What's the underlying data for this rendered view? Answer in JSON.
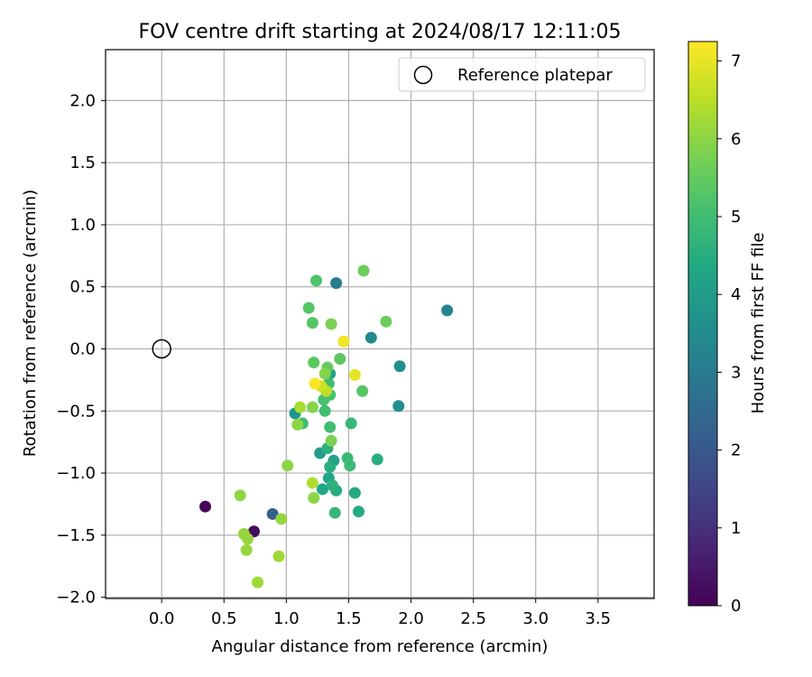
{
  "chart_data": {
    "type": "scatter",
    "title": "FOV centre drift starting at 2024/08/17 12:11:05",
    "xlabel": "Angular distance from reference (arcmin)",
    "ylabel": "Rotation from reference (arcmin)",
    "xlim": [
      -0.45,
      3.95
    ],
    "ylim": [
      -2.01,
      2.41
    ],
    "xticks": [
      "0.0",
      "0.5",
      "1.0",
      "1.5",
      "2.0",
      "2.5",
      "3.0",
      "3.5"
    ],
    "yticks": [
      "−2.0",
      "−1.5",
      "−1.0",
      "−0.5",
      "0.0",
      "0.5",
      "1.0",
      "1.5",
      "2.0"
    ],
    "grid": true,
    "legend": {
      "position": "top-right",
      "entries": [
        "Reference platepar"
      ]
    },
    "reference_point": {
      "x": 0.0,
      "y": 0.0,
      "marker": "hollow-circle"
    },
    "colorbar": {
      "label": "Hours from first FF file",
      "colormap": "viridis",
      "range": [
        0,
        7.25
      ],
      "ticks": [
        "0",
        "1",
        "2",
        "3",
        "4",
        "5",
        "6",
        "7"
      ]
    },
    "points": [
      {
        "x": 0.35,
        "y": -1.27,
        "c": 0.1
      },
      {
        "x": 0.74,
        "y": -1.47,
        "c": 0.2
      },
      {
        "x": 0.89,
        "y": -1.33,
        "c": 2.2
      },
      {
        "x": 1.4,
        "y": 0.53,
        "c": 3.0
      },
      {
        "x": 2.29,
        "y": 0.31,
        "c": 3.3
      },
      {
        "x": 1.68,
        "y": 0.09,
        "c": 3.4
      },
      {
        "x": 1.91,
        "y": -0.14,
        "c": 3.6
      },
      {
        "x": 1.9,
        "y": -0.46,
        "c": 3.6
      },
      {
        "x": 1.07,
        "y": -0.52,
        "c": 3.8
      },
      {
        "x": 1.27,
        "y": -0.84,
        "c": 4.0
      },
      {
        "x": 1.35,
        "y": -0.2,
        "c": 4.2
      },
      {
        "x": 1.38,
        "y": -0.9,
        "c": 4.2
      },
      {
        "x": 1.29,
        "y": -1.13,
        "c": 4.3
      },
      {
        "x": 1.34,
        "y": -1.04,
        "c": 4.3
      },
      {
        "x": 1.4,
        "y": -1.14,
        "c": 4.4
      },
      {
        "x": 1.55,
        "y": -1.16,
        "c": 4.4
      },
      {
        "x": 1.58,
        "y": -1.31,
        "c": 4.4
      },
      {
        "x": 1.73,
        "y": -0.89,
        "c": 4.5
      },
      {
        "x": 1.35,
        "y": -0.95,
        "c": 4.5
      },
      {
        "x": 1.33,
        "y": -0.8,
        "c": 4.6
      },
      {
        "x": 1.37,
        "y": -1.1,
        "c": 4.6
      },
      {
        "x": 1.39,
        "y": -1.32,
        "c": 4.8
      },
      {
        "x": 1.52,
        "y": -0.6,
        "c": 4.8
      },
      {
        "x": 1.49,
        "y": -0.88,
        "c": 4.9
      },
      {
        "x": 1.51,
        "y": -0.94,
        "c": 4.9
      },
      {
        "x": 1.13,
        "y": -0.6,
        "c": 5.0
      },
      {
        "x": 1.31,
        "y": -0.5,
        "c": 5.0
      },
      {
        "x": 1.34,
        "y": -0.28,
        "c": 5.0
      },
      {
        "x": 1.35,
        "y": -0.63,
        "c": 5.0
      },
      {
        "x": 1.35,
        "y": -0.37,
        "c": 5.1
      },
      {
        "x": 1.3,
        "y": -0.41,
        "c": 5.1
      },
      {
        "x": 1.24,
        "y": 0.55,
        "c": 5.2
      },
      {
        "x": 1.18,
        "y": 0.33,
        "c": 5.3
      },
      {
        "x": 1.21,
        "y": 0.21,
        "c": 5.3
      },
      {
        "x": 1.61,
        "y": -0.34,
        "c": 5.3
      },
      {
        "x": 1.43,
        "y": -0.08,
        "c": 5.4
      },
      {
        "x": 1.22,
        "y": -0.11,
        "c": 5.4
      },
      {
        "x": 1.33,
        "y": -0.15,
        "c": 5.5
      },
      {
        "x": 1.62,
        "y": 0.63,
        "c": 5.6
      },
      {
        "x": 1.8,
        "y": 0.22,
        "c": 5.6
      },
      {
        "x": 1.36,
        "y": 0.2,
        "c": 5.8
      },
      {
        "x": 1.36,
        "y": -0.74,
        "c": 5.8
      },
      {
        "x": 1.21,
        "y": -0.47,
        "c": 5.9
      },
      {
        "x": 1.31,
        "y": -0.2,
        "c": 5.9
      },
      {
        "x": 1.22,
        "y": -1.2,
        "c": 6.0
      },
      {
        "x": 1.09,
        "y": -0.61,
        "c": 6.0
      },
      {
        "x": 1.01,
        "y": -0.94,
        "c": 6.0
      },
      {
        "x": 0.63,
        "y": -1.18,
        "c": 6.0
      },
      {
        "x": 0.66,
        "y": -1.49,
        "c": 6.1
      },
      {
        "x": 0.69,
        "y": -1.53,
        "c": 6.1
      },
      {
        "x": 0.68,
        "y": -1.62,
        "c": 6.1
      },
      {
        "x": 0.96,
        "y": -1.37,
        "c": 6.1
      },
      {
        "x": 0.94,
        "y": -1.67,
        "c": 6.2
      },
      {
        "x": 0.77,
        "y": -1.88,
        "c": 6.2
      },
      {
        "x": 1.11,
        "y": -0.47,
        "c": 6.3
      },
      {
        "x": 1.21,
        "y": -1.08,
        "c": 6.4
      },
      {
        "x": 1.32,
        "y": -0.34,
        "c": 6.5
      },
      {
        "x": 1.28,
        "y": -0.3,
        "c": 6.7
      },
      {
        "x": 1.55,
        "y": -0.21,
        "c": 7.0
      },
      {
        "x": 1.46,
        "y": 0.06,
        "c": 7.1
      },
      {
        "x": 1.23,
        "y": -0.28,
        "c": 7.2
      }
    ]
  }
}
